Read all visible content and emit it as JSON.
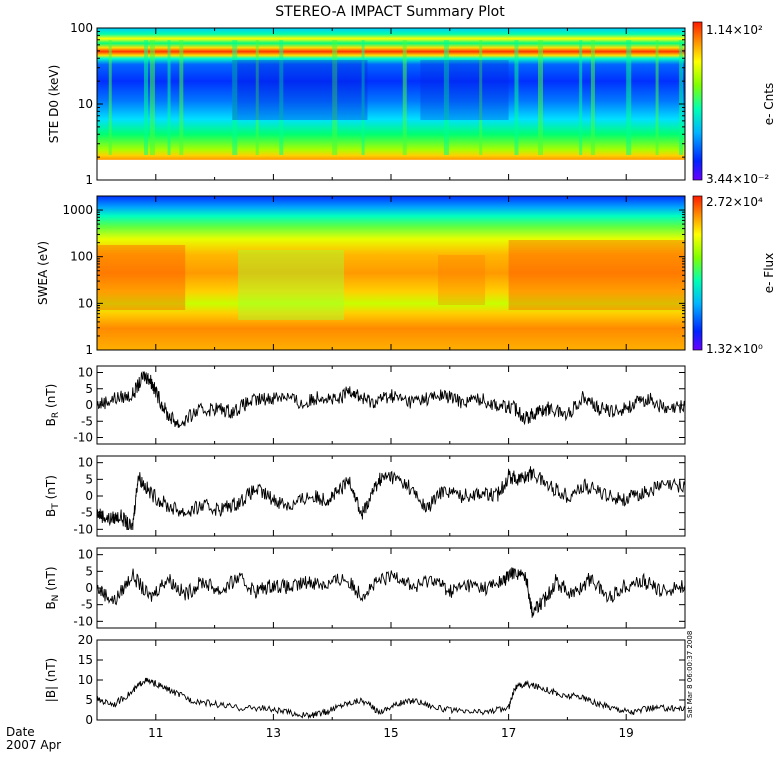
{
  "title": "STEREO-A IMPACT Summary Plot",
  "footer": {
    "date_label": "Date",
    "date_value": "2007 Apr"
  },
  "stamp": "Sat Mar  8 06:00:37 2008",
  "chart_data": {
    "type": "line",
    "x_unit": "day of April 2007",
    "xlim": [
      10,
      20
    ],
    "xticks_major": [
      11,
      13,
      15,
      17,
      19
    ],
    "xtick_labels": [
      "11",
      "13",
      "15",
      "17",
      "19"
    ],
    "panels": [
      {
        "id": "ste",
        "type": "heatmap",
        "ylabel": "STE D0 (keV)",
        "yscale": "log",
        "ylim": [
          1,
          100
        ],
        "yticks": [
          1,
          10,
          100
        ],
        "ytick_labels": [
          "1",
          "10",
          "100"
        ],
        "colorbar": {
          "label": "e- Cnts",
          "max": "1.14×10²",
          "min": "3.44×10⁻²"
        }
      },
      {
        "id": "swea",
        "type": "heatmap",
        "ylabel": "SWEA (eV)",
        "yscale": "log",
        "ylim": [
          1,
          2000
        ],
        "yticks": [
          1,
          10,
          100,
          1000
        ],
        "ytick_labels": [
          "1",
          "10",
          "100",
          "1000"
        ],
        "colorbar": {
          "label": "e- Flux",
          "max": "2.72×10⁴",
          "min": "1.32×10⁰"
        }
      },
      {
        "id": "br",
        "type": "line",
        "ylabel_main": "B",
        "ylabel_sub": "R",
        "ylabel_unit": "(nT)",
        "ylim": [
          -12,
          12
        ],
        "yticks": [
          -10,
          -5,
          0,
          5,
          10
        ],
        "ytick_labels": [
          "-10",
          "-5",
          "0",
          "5",
          "10"
        ],
        "series": {
          "x": [
            10.0,
            10.3,
            10.6,
            10.8,
            10.9,
            11.0,
            11.2,
            11.4,
            11.7,
            12.0,
            12.3,
            12.6,
            12.9,
            13.2,
            13.5,
            13.8,
            14.1,
            14.3,
            14.5,
            14.7,
            15.0,
            15.3,
            15.6,
            15.9,
            16.2,
            16.5,
            16.8,
            17.1,
            17.3,
            17.5,
            17.7,
            18.0,
            18.3,
            18.5,
            18.8,
            19.1,
            19.4,
            19.7,
            20.0
          ],
          "values": [
            0,
            2,
            3,
            9,
            8,
            4,
            -3,
            -6,
            -2,
            -1,
            -2,
            1,
            2,
            3,
            0,
            3,
            1,
            5,
            2,
            1,
            3,
            1,
            2,
            3,
            1,
            2,
            0,
            -1,
            -4,
            -2,
            -1,
            -3,
            3,
            -1,
            -2,
            0,
            2,
            -2,
            0
          ]
        }
      },
      {
        "id": "bt",
        "type": "line",
        "ylabel_main": "B",
        "ylabel_sub": "T",
        "ylabel_unit": "(nT)",
        "ylim": [
          -12,
          12
        ],
        "yticks": [
          -10,
          -5,
          0,
          5,
          10
        ],
        "ytick_labels": [
          "-10",
          "-5",
          "0",
          "5",
          "10"
        ],
        "series": {
          "x": [
            10.0,
            10.2,
            10.4,
            10.6,
            10.7,
            10.9,
            11.2,
            11.5,
            11.8,
            12.1,
            12.4,
            12.7,
            13.0,
            13.3,
            13.6,
            13.9,
            14.1,
            14.3,
            14.5,
            14.6,
            14.8,
            15.0,
            15.3,
            15.6,
            15.9,
            16.2,
            16.5,
            16.8,
            17.0,
            17.2,
            17.4,
            17.7,
            18.0,
            18.3,
            18.7,
            19.0,
            19.3,
            19.6,
            20.0
          ],
          "values": [
            -5,
            -7,
            -6,
            -10,
            6,
            1,
            -3,
            -5,
            -3,
            -4,
            -2,
            2,
            -1,
            -3,
            0,
            -1,
            1,
            5,
            -6,
            -2,
            5,
            6,
            3,
            -4,
            2,
            0,
            1,
            0,
            6,
            5,
            7,
            3,
            0,
            3,
            0,
            -1,
            1,
            3,
            3
          ]
        }
      },
      {
        "id": "bn",
        "type": "line",
        "ylabel_main": "B",
        "ylabel_sub": "N",
        "ylabel_unit": "(nT)",
        "ylim": [
          -12,
          12
        ],
        "yticks": [
          -10,
          -5,
          0,
          5,
          10
        ],
        "ytick_labels": [
          "-10",
          "-5",
          "0",
          "5",
          "10"
        ],
        "series": {
          "x": [
            10.0,
            10.3,
            10.6,
            10.9,
            11.2,
            11.5,
            11.8,
            12.1,
            12.4,
            12.7,
            13.0,
            13.3,
            13.6,
            13.9,
            14.2,
            14.5,
            14.8,
            15.1,
            15.4,
            15.7,
            16.0,
            16.3,
            16.6,
            16.9,
            17.1,
            17.3,
            17.4,
            17.6,
            17.8,
            18.1,
            18.4,
            18.7,
            19.0,
            19.3,
            19.6,
            20.0
          ],
          "values": [
            0,
            -4,
            4,
            -3,
            3,
            -2,
            2,
            -1,
            3,
            -1,
            1,
            0,
            2,
            1,
            3,
            -2,
            2,
            4,
            0,
            3,
            -1,
            1,
            0,
            2,
            5,
            3,
            -7,
            -4,
            2,
            -2,
            3,
            -3,
            1,
            2,
            -1,
            1
          ]
        }
      },
      {
        "id": "bmag",
        "type": "line",
        "ylabel_main": "|B| (nT)",
        "ylim": [
          0,
          20
        ],
        "yticks": [
          0,
          5,
          10,
          15,
          20
        ],
        "ytick_labels": [
          "0",
          "5",
          "10",
          "15",
          "20"
        ],
        "series": {
          "x": [
            10.0,
            10.3,
            10.6,
            10.8,
            11.0,
            11.3,
            11.6,
            12.0,
            12.4,
            12.8,
            13.2,
            13.6,
            13.9,
            14.2,
            14.5,
            14.8,
            15.1,
            15.4,
            15.8,
            16.2,
            16.6,
            17.0,
            17.1,
            17.3,
            17.6,
            17.9,
            18.2,
            18.5,
            18.8,
            19.1,
            19.4,
            19.7,
            20.0
          ],
          "values": [
            5,
            4,
            7,
            10,
            9,
            7,
            5,
            4,
            3,
            3,
            2,
            1,
            2,
            4,
            5,
            2,
            4,
            5,
            3,
            2,
            2,
            3,
            8,
            9,
            8,
            6,
            6,
            4,
            3,
            2,
            3,
            3,
            3
          ]
        }
      }
    ]
  }
}
